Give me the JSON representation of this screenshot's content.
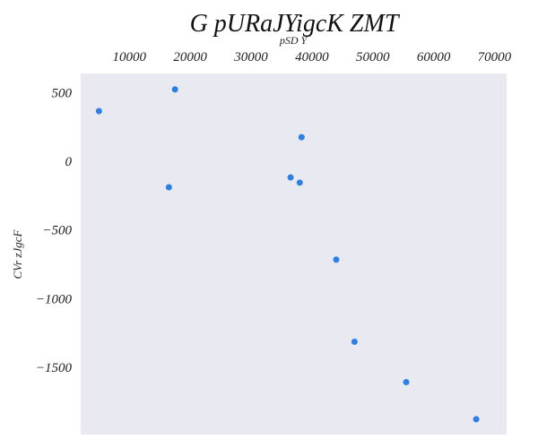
{
  "chart_data": {
    "type": "scatter",
    "title": "G pURaJYigcK ZMT",
    "xlabel": "pSD Y",
    "ylabel": "CVr zJgcF",
    "x_axis_position": "top",
    "xlim": [
      2000,
      72000
    ],
    "ylim": [
      -1990,
      640
    ],
    "x_ticks": [
      10000,
      20000,
      30000,
      40000,
      50000,
      60000,
      70000
    ],
    "x_tick_labels": [
      "10000",
      "20000",
      "30000",
      "40000",
      "50000",
      "60000",
      "70000"
    ],
    "y_ticks": [
      500,
      0,
      -500,
      -1000,
      -1500
    ],
    "y_tick_labels": [
      "500",
      "0",
      "−500",
      "−1000",
      "−1500"
    ],
    "grid": false,
    "background_color": "#e9e9f2",
    "marker_color": "#2c7fe5",
    "series": [
      {
        "points": [
          {
            "x": 5000,
            "y": 366
          },
          {
            "x": 16500,
            "y": -189
          },
          {
            "x": 17500,
            "y": 524
          },
          {
            "x": 36500,
            "y": -117
          },
          {
            "x": 38000,
            "y": -155
          },
          {
            "x": 38300,
            "y": 176
          },
          {
            "x": 44000,
            "y": -716
          },
          {
            "x": 47000,
            "y": -1314
          },
          {
            "x": 55500,
            "y": -1608
          },
          {
            "x": 67000,
            "y": -1878
          }
        ]
      }
    ]
  }
}
